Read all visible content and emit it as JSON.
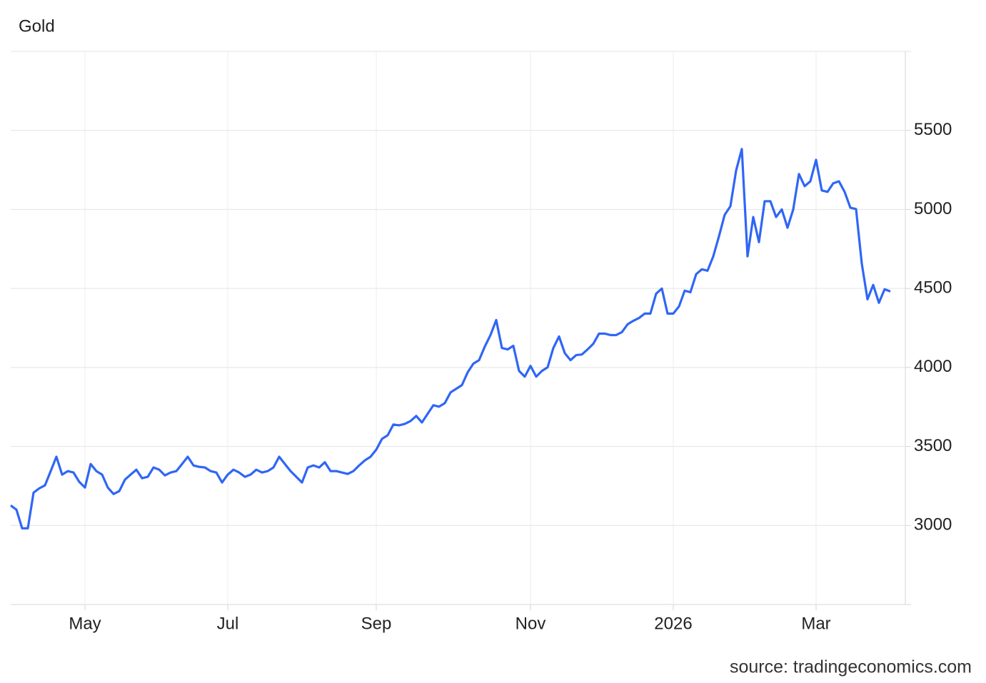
{
  "chart_data": {
    "type": "line",
    "title": "Gold",
    "source": "source: tradingeconomics.com",
    "color": "#2f66f5",
    "categories": [
      null,
      null,
      null,
      null,
      null,
      null,
      null,
      null,
      null,
      null,
      null,
      null,
      null,
      "May",
      null,
      null,
      null,
      null,
      null,
      null,
      null,
      null,
      null,
      null,
      null,
      null,
      null,
      null,
      null,
      null,
      null,
      null,
      null,
      null,
      null,
      null,
      null,
      null,
      "Jul",
      null,
      null,
      null,
      null,
      null,
      null,
      null,
      null,
      null,
      null,
      null,
      null,
      null,
      null,
      null,
      null,
      null,
      null,
      null,
      null,
      null,
      null,
      null,
      null,
      null,
      "Sep",
      null,
      null,
      null,
      null,
      null,
      null,
      null,
      null,
      null,
      null,
      null,
      null,
      null,
      null,
      null,
      null,
      null,
      null,
      null,
      null,
      null,
      null,
      null,
      null,
      null,
      null,
      "Nov",
      null,
      null,
      null,
      null,
      null,
      null,
      null,
      null,
      null,
      null,
      null,
      null,
      null,
      null,
      null,
      null,
      null,
      null,
      null,
      null,
      null,
      null,
      null,
      null,
      "2026",
      null,
      null,
      null,
      null,
      null,
      null,
      null,
      null,
      null,
      null,
      null,
      null,
      null,
      null,
      null,
      null,
      null,
      null,
      null,
      null,
      null,
      null,
      null,
      null,
      "Mar",
      null,
      null,
      null,
      null,
      null,
      null,
      null,
      null,
      null,
      null,
      null,
      null,
      null
    ],
    "values": [
      3127,
      3100,
      2982,
      2982,
      3208,
      3235,
      3254,
      3344,
      3435,
      3322,
      3344,
      3335,
      3276,
      3240,
      3389,
      3344,
      3322,
      3240,
      3199,
      3217,
      3290,
      3322,
      3353,
      3299,
      3308,
      3367,
      3353,
      3317,
      3335,
      3344,
      3389,
      3435,
      3380,
      3371,
      3367,
      3344,
      3335,
      3272,
      3322,
      3353,
      3335,
      3308,
      3322,
      3353,
      3335,
      3344,
      3367,
      3435,
      3389,
      3344,
      3308,
      3272,
      3367,
      3380,
      3367,
      3400,
      3344,
      3344,
      3335,
      3326,
      3344,
      3380,
      3412,
      3435,
      3480,
      3548,
      3571,
      3639,
      3634,
      3643,
      3661,
      3693,
      3652,
      3707,
      3761,
      3752,
      3774,
      3842,
      3865,
      3888,
      3969,
      4024,
      4046,
      4132,
      4205,
      4300,
      4123,
      4114,
      4137,
      3978,
      3942,
      4010,
      3942,
      3978,
      4001,
      4123,
      4196,
      4091,
      4046,
      4078,
      4082,
      4114,
      4150,
      4214,
      4214,
      4205,
      4205,
      4223,
      4273,
      4295,
      4313,
      4341,
      4341,
      4467,
      4499,
      4341,
      4341,
      4386,
      4486,
      4476,
      4590,
      4621,
      4612,
      4703,
      4830,
      4966,
      5020,
      5246,
      5382,
      4703,
      4952,
      4793,
      5052,
      5052,
      4952,
      5000,
      4884,
      5000,
      5224,
      5147,
      5178,
      5314,
      5120,
      5111,
      5165,
      5178,
      5111,
      5011,
      5002,
      4658,
      4431,
      4522,
      4409,
      4495,
      4481
    ],
    "ylim": [
      2500,
      6000
    ],
    "yticks": [
      3000,
      3500,
      4000,
      4500,
      5000,
      5500
    ],
    "grid": true
  }
}
